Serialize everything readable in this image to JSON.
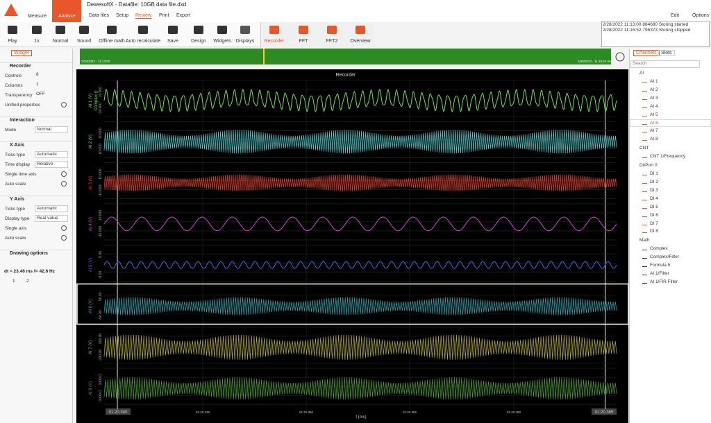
{
  "app": {
    "title": "DewesoftX - Datafile: 10GB data file.dxd",
    "modes": [
      "Measure",
      "Analyze"
    ],
    "menu": [
      "Data files",
      "Setup",
      "Review",
      "Print",
      "Export"
    ],
    "right": [
      "Edit",
      "Options"
    ]
  },
  "toolbar": [
    "Play",
    "1x",
    "Normal",
    "Sound",
    "Offline math",
    "Auto recalculate",
    "Save",
    "Design",
    "Widgets",
    "Displays",
    "Recorder",
    "FFT",
    "FFT2",
    "Overview"
  ],
  "log": [
    "2/28/2022 11:13:00.884680 Storing started",
    "2/28/2022 11:16:52.796373 Storing stopped"
  ],
  "left": {
    "tab": "Widget",
    "sections": [
      {
        "title": "Recorder",
        "rows": [
          [
            "Controls",
            "8"
          ],
          [
            "Columns",
            "1"
          ],
          [
            "Transparency",
            "OFF"
          ],
          [
            "Unified properties",
            ""
          ]
        ]
      },
      {
        "title": "Interaction",
        "rows": [
          [
            "Mode",
            "Normal"
          ]
        ]
      },
      {
        "title": "X Axis",
        "rows": [
          [
            "Ticks type",
            "Automatic"
          ],
          [
            "Time display",
            "Relative"
          ],
          [
            "Single time axis",
            ""
          ],
          [
            "Auto scale",
            ""
          ]
        ]
      },
      {
        "title": "Y Axis",
        "rows": [
          [
            "Ticks type",
            "Automatic"
          ],
          [
            "Display type",
            "Real value"
          ],
          [
            "Single axis",
            ""
          ],
          [
            "Auto scale",
            ""
          ]
        ]
      },
      {
        "title": "Drawing options",
        "rows": []
      }
    ],
    "cursor": "dt = 23.46 ms  f= 42.6 Hz",
    "locks": [
      "1",
      "2"
    ]
  },
  "overview": {
    "start": "2/28/2022 - 11:13:00",
    "end": "2/28/2022 - 11:16:52 AM"
  },
  "recorder": {
    "title": "Recorder",
    "xlabel": "t (ms)",
    "xticks": [
      "01:20.340",
      "01:20.345",
      "01:20.350",
      "01:20.355",
      "01:20.360",
      "01:20.365"
    ],
    "channels": [
      {
        "name": "AI 1 (V)",
        "extra": "Complex ()",
        "max": "10.000",
        "min": "-10.000",
        "color": "#6fe34a"
      },
      {
        "name": "AI 2 (V)",
        "max": "10.000",
        "min": "-10.000",
        "color": "#4fd6d6"
      },
      {
        "name": "AI 3 (V)",
        "max": "10.000",
        "min": "-10.000",
        "color": "#e0402a"
      },
      {
        "name": "AI 4 (V)",
        "max": "10.000",
        "min": "-10.000",
        "color": "#d040d8"
      },
      {
        "name": "AI 5 (V)",
        "max": "5.00",
        "min": "-5.00",
        "color": "#3a6ee8"
      },
      {
        "name": "AI 6 (V)",
        "max": "50.00",
        "min": "-50.00",
        "color": "#2fa8b0"
      },
      {
        "name": "AI 7 (V)",
        "max": "200.00",
        "min": "-200.00",
        "color": "#b8b030"
      },
      {
        "name": "AI 8 (V)",
        "max": "1000.0",
        "min": "-1000.0",
        "color": "#4ea030"
      }
    ]
  },
  "tree": {
    "tabs": [
      "Channels",
      "Slots"
    ],
    "search": "Search",
    "groups": [
      {
        "name": "AI",
        "items": [
          "AI 1",
          "AI 2",
          "AI 3",
          "AI 4",
          "AI 5",
          "AI 6",
          "AI 7",
          "AI 8"
        ]
      },
      {
        "name": "CNT",
        "items": [
          "CNT 1/Frequency"
        ]
      },
      {
        "name": "DI/Port 0",
        "items": [
          "DI 1",
          "DI 2",
          "DI 3",
          "DI 4",
          "DI 5",
          "DI 6",
          "DI 7",
          "DI 8"
        ]
      },
      {
        "name": "Math",
        "items": [
          "Complex",
          "Complex/Filter",
          "Formula 5",
          "AI 1/Filter",
          "AI 1/FIR Filter"
        ]
      }
    ]
  }
}
